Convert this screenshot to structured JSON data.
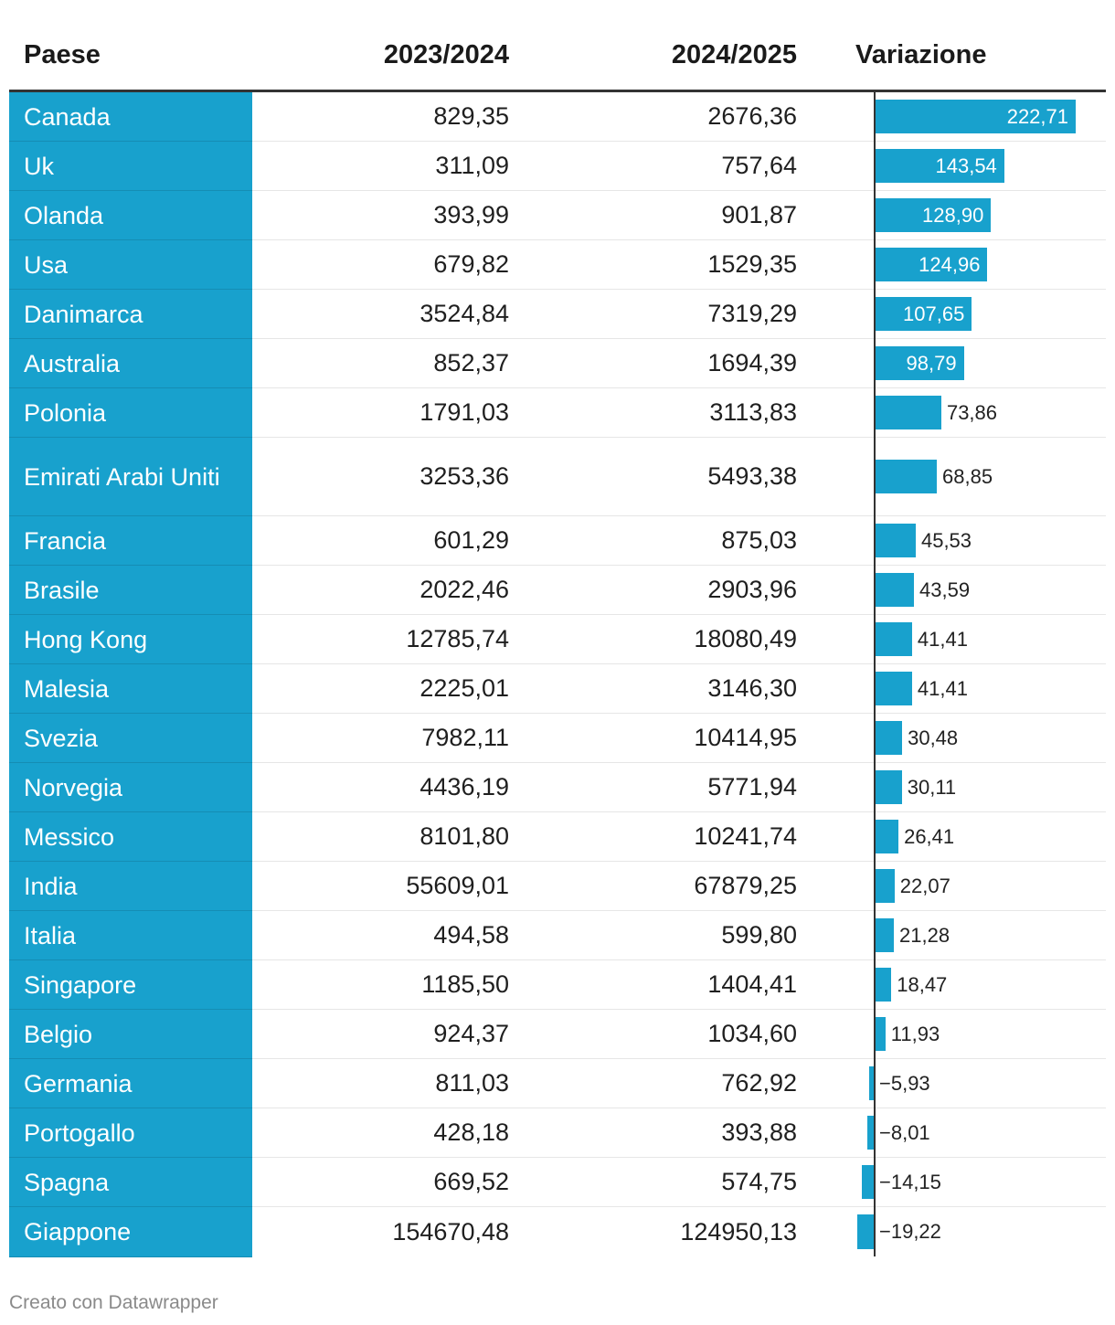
{
  "chart_data": {
    "type": "table",
    "columns": [
      "Paese",
      "2023/2024",
      "2024/2025",
      "Variazione"
    ],
    "rows": [
      {
        "country": "Canada",
        "y2023_2024": "829,35",
        "y2024_2025": "2676,36",
        "variation": 222.71,
        "variation_label": "222,71"
      },
      {
        "country": "Uk",
        "y2023_2024": "311,09",
        "y2024_2025": "757,64",
        "variation": 143.54,
        "variation_label": "143,54"
      },
      {
        "country": "Olanda",
        "y2023_2024": "393,99",
        "y2024_2025": "901,87",
        "variation": 128.9,
        "variation_label": "128,90"
      },
      {
        "country": "Usa",
        "y2023_2024": "679,82",
        "y2024_2025": "1529,35",
        "variation": 124.96,
        "variation_label": "124,96"
      },
      {
        "country": "Danimarca",
        "y2023_2024": "3524,84",
        "y2024_2025": "7319,29",
        "variation": 107.65,
        "variation_label": "107,65"
      },
      {
        "country": "Australia",
        "y2023_2024": "852,37",
        "y2024_2025": "1694,39",
        "variation": 98.79,
        "variation_label": "98,79"
      },
      {
        "country": "Polonia",
        "y2023_2024": "1791,03",
        "y2024_2025": "3113,83",
        "variation": 73.86,
        "variation_label": "73,86"
      },
      {
        "country": "Emirati Arabi Uniti",
        "y2023_2024": "3253,36",
        "y2024_2025": "5493,38",
        "variation": 68.85,
        "variation_label": "68,85"
      },
      {
        "country": "Francia",
        "y2023_2024": "601,29",
        "y2024_2025": "875,03",
        "variation": 45.53,
        "variation_label": "45,53"
      },
      {
        "country": "Brasile",
        "y2023_2024": "2022,46",
        "y2024_2025": "2903,96",
        "variation": 43.59,
        "variation_label": "43,59"
      },
      {
        "country": "Hong Kong",
        "y2023_2024": "12785,74",
        "y2024_2025": "18080,49",
        "variation": 41.41,
        "variation_label": "41,41"
      },
      {
        "country": "Malesia",
        "y2023_2024": "2225,01",
        "y2024_2025": "3146,30",
        "variation": 41.41,
        "variation_label": "41,41"
      },
      {
        "country": "Svezia",
        "y2023_2024": "7982,11",
        "y2024_2025": "10414,95",
        "variation": 30.48,
        "variation_label": "30,48"
      },
      {
        "country": "Norvegia",
        "y2023_2024": "4436,19",
        "y2024_2025": "5771,94",
        "variation": 30.11,
        "variation_label": "30,11"
      },
      {
        "country": "Messico",
        "y2023_2024": "8101,80",
        "y2024_2025": "10241,74",
        "variation": 26.41,
        "variation_label": "26,41"
      },
      {
        "country": "India",
        "y2023_2024": "55609,01",
        "y2024_2025": "67879,25",
        "variation": 22.07,
        "variation_label": "22,07"
      },
      {
        "country": "Italia",
        "y2023_2024": "494,58",
        "y2024_2025": "599,80",
        "variation": 21.28,
        "variation_label": "21,28"
      },
      {
        "country": "Singapore",
        "y2023_2024": "1185,50",
        "y2024_2025": "1404,41",
        "variation": 18.47,
        "variation_label": "18,47"
      },
      {
        "country": "Belgio",
        "y2023_2024": "924,37",
        "y2024_2025": "1034,60",
        "variation": 11.93,
        "variation_label": "11,93"
      },
      {
        "country": "Germania",
        "y2023_2024": "811,03",
        "y2024_2025": "762,92",
        "variation": -5.93,
        "variation_label": "−5,93"
      },
      {
        "country": "Portogallo",
        "y2023_2024": "428,18",
        "y2024_2025": "393,88",
        "variation": -8.01,
        "variation_label": "−8,01"
      },
      {
        "country": "Spagna",
        "y2023_2024": "669,52",
        "y2024_2025": "574,75",
        "variation": -14.15,
        "variation_label": "−14,15"
      },
      {
        "country": "Giappone",
        "y2023_2024": "154670,48",
        "y2024_2025": "124950,13",
        "variation": -19.22,
        "variation_label": "−19,22"
      }
    ],
    "variation_max": 222.71
  },
  "header": {
    "country": "Paese",
    "y1": "2023/2024",
    "y2": "2024/2025",
    "variation": "Variazione"
  },
  "footer": {
    "credit": "Creato con Datawrapper"
  },
  "colors": {
    "accent": "#18a1cd"
  }
}
